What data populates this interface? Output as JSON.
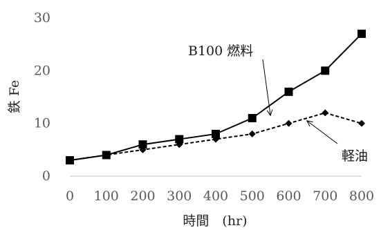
{
  "chart_data": {
    "type": "line",
    "xlabel": "時間　(hr)",
    "ylabel": "鉄 Fe",
    "x": [
      0,
      100,
      200,
      300,
      400,
      500,
      600,
      700,
      800
    ],
    "xlim": [
      0,
      800
    ],
    "ylim": [
      0,
      30
    ],
    "xticks": [
      0,
      100,
      200,
      300,
      400,
      500,
      600,
      700,
      800
    ],
    "yticks": [
      0,
      10,
      20,
      30
    ],
    "grid": false,
    "series": [
      {
        "name": "B100 燃料",
        "values": [
          3,
          4,
          6,
          7,
          8,
          11,
          16,
          20,
          27
        ],
        "line_style": "solid",
        "marker": "square",
        "color": "#000000"
      },
      {
        "name": "軽油",
        "values": [
          3,
          4,
          5,
          6,
          7,
          8,
          10,
          12,
          10
        ],
        "line_style": "dashed",
        "marker": "diamond",
        "color": "#000000"
      }
    ],
    "annotations": [
      {
        "text": "B100 燃料",
        "target_series": 0,
        "target_x": 550,
        "target_y": 11.5
      },
      {
        "text": "軽油",
        "target_series": 1,
        "target_x": 650,
        "target_y": 10.5
      }
    ]
  }
}
